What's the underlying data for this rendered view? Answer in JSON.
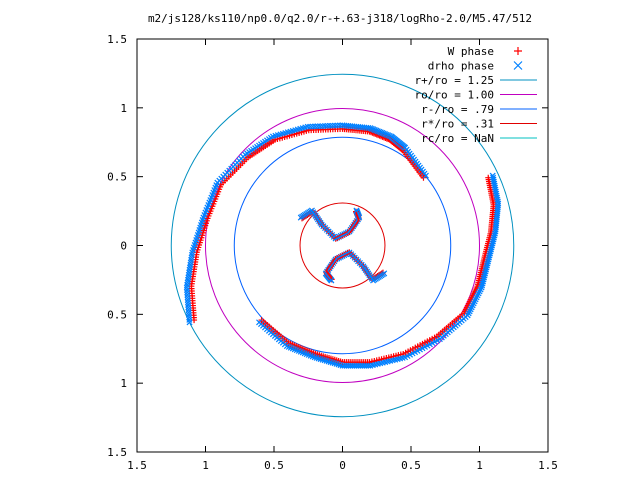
{
  "chart_data": {
    "type": "scatter",
    "title": "m2/js128/ks110/np0.0/q2.0/r-+.63-j318/logRho-2.0/M5.47/512",
    "xlabel": "",
    "ylabel": "",
    "xlim": [
      -1.5,
      1.5
    ],
    "ylim": [
      -1.5,
      1.5
    ],
    "aspect": "equal",
    "grid": false,
    "legend_position": "top-right",
    "x_tick_labels": [
      "1.5",
      "1",
      "0.5",
      "0",
      "0.5",
      "1",
      "1.5"
    ],
    "y_tick_labels": [
      "1.5",
      "1",
      "0.5",
      "0",
      "0.5",
      "1",
      "1.5"
    ],
    "tick_values": [
      -1.5,
      -1,
      -0.5,
      0,
      0.5,
      1,
      1.5
    ],
    "series": [
      {
        "name": "W phase",
        "marker": "+",
        "color": "#ff0000"
      },
      {
        "name": "drho phase",
        "marker": "x",
        "color": "#0080ff"
      }
    ],
    "circles": [
      {
        "name": "r+/ro = 1.25",
        "radius": 1.25,
        "color": "#0090c0"
      },
      {
        "name": "ro/ro = 1.00",
        "radius": 1.0,
        "color": "#c000c0"
      },
      {
        "name": "r-/ro = .79",
        "radius": 0.79,
        "color": "#0060ff"
      },
      {
        "name": "r*/ro = .31",
        "radius": 0.31,
        "color": "#e00000"
      },
      {
        "name": "rc/ro = NaN",
        "radius": null,
        "color": "#00c0c0"
      }
    ],
    "spiral_arms": {
      "outer_right": [
        [
          1.08,
          0.5
        ],
        [
          1.12,
          0.3
        ],
        [
          1.1,
          0.1
        ],
        [
          1.05,
          -0.1
        ],
        [
          1.0,
          -0.3
        ],
        [
          0.9,
          -0.5
        ],
        [
          0.7,
          -0.67
        ],
        [
          0.45,
          -0.8
        ],
        [
          0.2,
          -0.86
        ],
        [
          0.0,
          -0.86
        ],
        [
          -0.2,
          -0.8
        ],
        [
          -0.4,
          -0.72
        ],
        [
          -0.6,
          -0.55
        ]
      ],
      "outer_left": [
        [
          -1.1,
          -0.55
        ],
        [
          -1.12,
          -0.3
        ],
        [
          -1.08,
          -0.05
        ],
        [
          -1.0,
          0.2
        ],
        [
          -0.9,
          0.45
        ],
        [
          -0.7,
          0.65
        ],
        [
          -0.5,
          0.78
        ],
        [
          -0.25,
          0.85
        ],
        [
          0.0,
          0.86
        ],
        [
          0.2,
          0.84
        ],
        [
          0.35,
          0.78
        ],
        [
          0.45,
          0.7
        ],
        [
          0.6,
          0.5
        ]
      ],
      "inner_a": [
        [
          -0.3,
          0.2
        ],
        [
          -0.22,
          0.25
        ],
        [
          -0.15,
          0.15
        ],
        [
          -0.05,
          0.05
        ],
        [
          0.05,
          0.1
        ],
        [
          0.12,
          0.2
        ],
        [
          0.1,
          0.25
        ]
      ],
      "inner_b": [
        [
          0.3,
          -0.2
        ],
        [
          0.22,
          -0.25
        ],
        [
          0.15,
          -0.15
        ],
        [
          0.05,
          -0.05
        ],
        [
          -0.05,
          -0.1
        ],
        [
          -0.12,
          -0.2
        ],
        [
          -0.08,
          -0.25
        ]
      ]
    }
  }
}
